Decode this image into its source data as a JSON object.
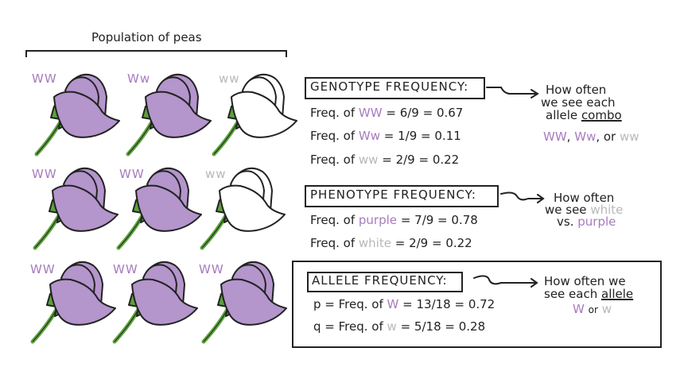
{
  "population": {
    "title": "Population of peas",
    "flowers": [
      {
        "genotype": "WW",
        "color": "purple"
      },
      {
        "genotype": "Ww",
        "color": "purple"
      },
      {
        "genotype": "ww",
        "color": "white"
      },
      {
        "genotype": "WW",
        "color": "purple"
      },
      {
        "genotype": "WW",
        "color": "purple"
      },
      {
        "genotype": "ww",
        "color": "white"
      },
      {
        "genotype": "WW",
        "color": "purple"
      },
      {
        "genotype": "WW",
        "color": "purple"
      },
      {
        "genotype": "WW",
        "color": "purple"
      }
    ]
  },
  "genotype": {
    "heading": "GENOTYPE FREQUENCY:",
    "rows": [
      {
        "prefix": "Freq. of",
        "term": "WW",
        "rest": "= 6/9 = 0.67"
      },
      {
        "prefix": "Freq. of",
        "term": "Ww",
        "rest": "= 1/9 = 0.11"
      },
      {
        "prefix": "Freq. of",
        "term": "ww",
        "rest": "= 2/9 = 0.22"
      }
    ],
    "note_line1": "How often",
    "note_line2": "we see each",
    "note_line3a": "allele",
    "note_line3b": "combo",
    "combo_ww_cap": "WW",
    "combo_ww_mid": "Ww",
    "combo_or": ", or",
    "combo_ww_low": "ww",
    "combo_comma": ","
  },
  "phenotype": {
    "heading": "PHENOTYPE FREQUENCY:",
    "rows": [
      {
        "prefix": "Freq. of",
        "term": "purple",
        "rest": "= 7/9 = 0.78"
      },
      {
        "prefix": "Freq. of",
        "term": "white",
        "rest": "= 2/9 = 0.22"
      }
    ],
    "note_line1": "How often",
    "note_line2a": "we see",
    "note_line2b": "white",
    "note_line3a": "vs.",
    "note_line3b": "purple"
  },
  "allele": {
    "heading": "ALLELE FREQUENCY:",
    "rows": [
      {
        "prefix": "p = Freq. of",
        "term": "W",
        "rest": "= 13/18 = 0.72"
      },
      {
        "prefix": "q = Freq. of",
        "term": "w",
        "rest": "= 5/18 = 0.28"
      }
    ],
    "note_line1": "How often we",
    "note_line2a": "see each",
    "note_line2b": "allele",
    "note_line3a": "W",
    "note_line3b": "or",
    "note_line3c": "w"
  },
  "colors": {
    "purple": "#b495cc",
    "purple_text": "#a77bbf",
    "white_text": "#b8b8b8",
    "stem": "#5aa33a",
    "ink": "#222222"
  }
}
